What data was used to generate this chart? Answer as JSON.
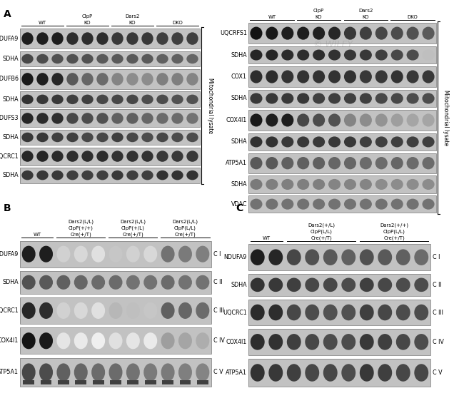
{
  "fig_width": 6.5,
  "fig_height": 5.79,
  "bg_color": "#ffffff",
  "panel_A_left": {
    "col_headers": [
      "WT",
      "ClpP\nKO",
      "Dars2\nKO",
      "DKO"
    ],
    "col_groups": [
      3,
      3,
      3,
      3
    ],
    "row_labels": [
      "NDUFA9",
      "SDHA",
      "NDUFB6",
      "SDHA",
      "NDUFS3",
      "SDHA",
      "UQCRC1",
      "SDHA"
    ],
    "row_is_paired": [
      true,
      false,
      true,
      false,
      true,
      false,
      true,
      false
    ],
    "vertical_label": "Mitochondrial lysate",
    "n_lanes": 12
  },
  "panel_A_right": {
    "col_headers": [
      "WT",
      "ClpP\nKO",
      "Dars2\nKO",
      "DKO"
    ],
    "col_groups": [
      3,
      3,
      3,
      3
    ],
    "row_labels": [
      "UQCRFS1",
      "SDHA",
      "COX1",
      "SDHA",
      "COX4I1",
      "SDHA",
      "ATP5A1",
      "SDHA",
      "VDAC"
    ],
    "row_is_paired": [
      true,
      false,
      true,
      false,
      true,
      false,
      true,
      false,
      false
    ],
    "vertical_label": "Mitochondrial lysate",
    "n_lanes": 12
  },
  "panel_B": {
    "col_headers": [
      "WT",
      "Dars2(L/L)\nClpP(+/+)\nCre(+/T)",
      "Dars2(L/L)\nClpP(+/L)\nCre(+/T)",
      "Dars2(L/L)\nClpP(L/L)\nCre(+/T)"
    ],
    "col_groups": [
      2,
      3,
      3,
      3
    ],
    "row_labels": [
      "NDUFA9",
      "SDHA",
      "UQCRC1",
      "COX4I1",
      "ATP5A1"
    ],
    "right_labels": [
      "C I",
      "C II",
      "C III",
      "C IV",
      "C V"
    ],
    "n_lanes": 11
  },
  "panel_C": {
    "col_headers": [
      "WT",
      "Dars2(+/L)\nClpP(L/L)\nCre(+/T)",
      "Dars2(+/+)\nClpP(L/L)\nCre(+/T)"
    ],
    "col_groups": [
      2,
      4,
      4
    ],
    "row_labels": [
      "NDUFA9",
      "SDHA",
      "UQCRC1",
      "COX4I1",
      "ATP5A1"
    ],
    "right_labels": [
      "C I",
      "C II",
      "C III",
      "C IV",
      "C V"
    ],
    "n_lanes": 10
  }
}
